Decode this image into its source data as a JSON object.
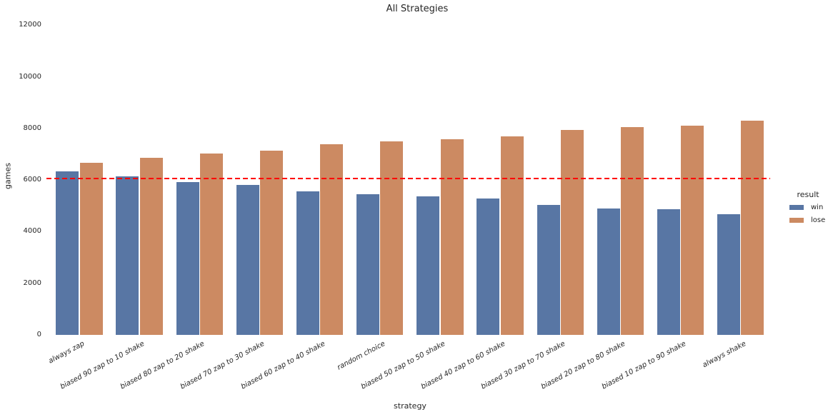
{
  "chart_data": {
    "type": "bar",
    "title": "All Strategies",
    "xlabel": "strategy",
    "ylabel": "games",
    "categories": [
      "always zap",
      "biased 90 zap to 10 shake",
      "biased 80 zap to 20 shake",
      "biased 70 zap to 30 shake",
      "biased 60 zap to 40 shake",
      "random choice",
      "biased 50 zap to 50 shake",
      "biased 40 zap to 60 shake",
      "biased 30 zap to 70 shake",
      "biased 20 zap to 80 shake",
      "biased 10 zap to 90 shake",
      "always shake"
    ],
    "series": [
      {
        "name": "win",
        "color": "#5876a4",
        "values": [
          6330,
          6130,
          5910,
          5820,
          5570,
          5440,
          5380,
          5290,
          5040,
          4910,
          4860,
          4670
        ]
      },
      {
        "name": "lose",
        "color": "#cc8a62",
        "values": [
          6670,
          6860,
          7040,
          7140,
          7380,
          7510,
          7580,
          7680,
          7930,
          8040,
          8110,
          8290
        ]
      }
    ],
    "y_ticks": [
      0,
      2000,
      4000,
      6000,
      8000,
      10000,
      12000
    ],
    "ylim": [
      0,
      12200
    ],
    "grid": false,
    "legend": {
      "title": "result",
      "position": "right"
    },
    "reference_line": {
      "value": 6050,
      "color": "#ff0000",
      "style": "dashed"
    }
  },
  "colors": {
    "background": "#ffffff",
    "text": "#262626"
  }
}
